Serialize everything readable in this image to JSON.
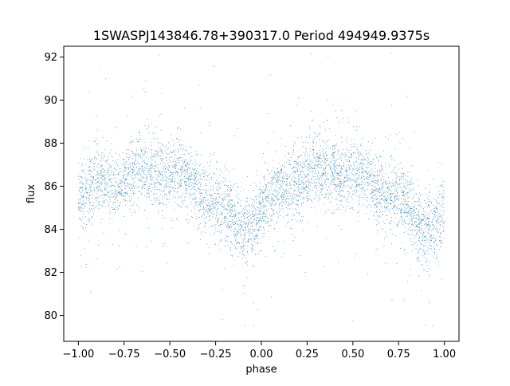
{
  "chart_data": {
    "type": "scatter",
    "title": "1SWASPJ143846.78+390317.0 Period 494949.9375s",
    "xlabel": "phase",
    "ylabel": "flux",
    "xlim": [
      -1.08,
      1.08
    ],
    "ylim": [
      78.8,
      92.5
    ],
    "xticks": [
      -1.0,
      -0.75,
      -0.5,
      -0.25,
      0.0,
      0.25,
      0.5,
      0.75,
      1.0
    ],
    "xtick_labels": [
      "−1.00",
      "−0.75",
      "−0.50",
      "−0.25",
      "0.00",
      "0.25",
      "0.50",
      "0.75",
      "1.00"
    ],
    "yticks": [
      80,
      82,
      84,
      86,
      88,
      90,
      92
    ],
    "ytick_labels": [
      "80",
      "82",
      "84",
      "86",
      "88",
      "90",
      "92"
    ],
    "grid": false,
    "point_color": "#1f77b4",
    "trend": {
      "phase": [
        -1.0,
        -0.9,
        -0.8,
        -0.7,
        -0.6,
        -0.5,
        -0.4,
        -0.3,
        -0.2,
        -0.1,
        0.0,
        0.1,
        0.2,
        0.3,
        0.4,
        0.5,
        0.6,
        0.7,
        0.8,
        0.9,
        1.0
      ],
      "flux": [
        85.3,
        85.8,
        86.2,
        86.7,
        87.0,
        86.6,
        86.0,
        85.5,
        84.9,
        84.4,
        84.9,
        85.6,
        86.2,
        86.7,
        87.0,
        86.6,
        86.0,
        85.5,
        84.9,
        84.4,
        84.9
      ]
    }
  }
}
